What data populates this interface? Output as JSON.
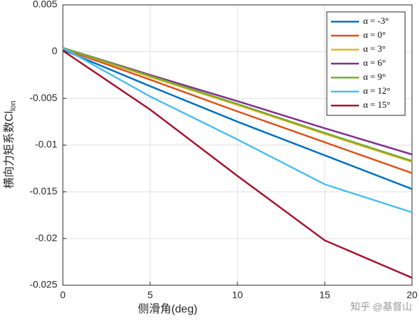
{
  "chart_data": {
    "type": "line",
    "x_label": "侧滑角(deg)",
    "y_label": "横向力矩系数Cl",
    "y_label_sub": "lon",
    "watermark": "知乎 @基督山",
    "x": [
      0,
      5,
      10,
      15,
      20
    ],
    "xlim": [
      0,
      20
    ],
    "xticks": [
      0,
      5,
      10,
      15,
      20
    ],
    "ylim": [
      -0.025,
      0.005
    ],
    "yticks": [
      0.005,
      0,
      -0.005,
      -0.01,
      -0.015,
      -0.02,
      -0.025
    ],
    "grid": true,
    "legend": "top-right",
    "series": [
      {
        "name": "α = -3°",
        "color": "#0072BD",
        "values": [
          0.0002,
          -0.0037,
          -0.0075,
          -0.0111,
          -0.0147
        ]
      },
      {
        "name": "α = 0°",
        "color": "#D95319",
        "values": [
          0.0003,
          -0.003,
          -0.0064,
          -0.0097,
          -0.013
        ]
      },
      {
        "name": "α = 3°",
        "color": "#EDB120",
        "values": [
          0.0004,
          -0.0027,
          -0.0057,
          -0.0088,
          -0.0118
        ]
      },
      {
        "name": "α = 6°",
        "color": "#7E2F8E",
        "values": [
          0.0004,
          -0.0025,
          -0.0053,
          -0.0082,
          -0.011
        ]
      },
      {
        "name": "α = 9°",
        "color": "#77AC30",
        "values": [
          0.0004,
          -0.0026,
          -0.0056,
          -0.0087,
          -0.0117
        ]
      },
      {
        "name": "α = 12°",
        "color": "#4DBEEE",
        "values": [
          0.0004,
          -0.0048,
          -0.0094,
          -0.0142,
          -0.0172
        ]
      },
      {
        "name": "α = 15°",
        "color": "#A2142F",
        "values": [
          0.0001,
          -0.0062,
          -0.0133,
          -0.0202,
          -0.0242
        ]
      }
    ]
  }
}
